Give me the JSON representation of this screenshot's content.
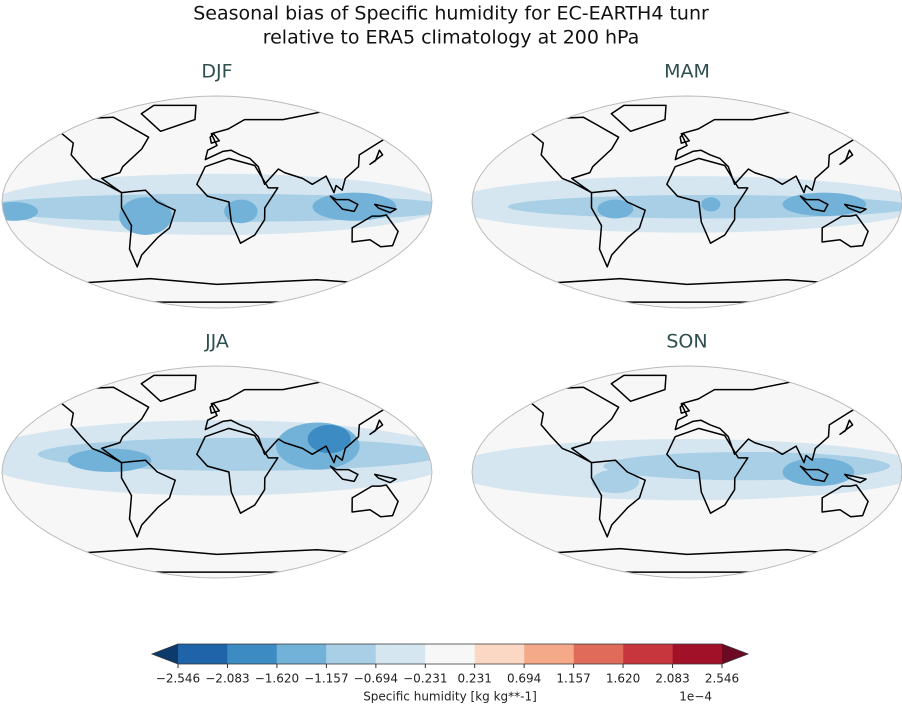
{
  "title_lines": [
    "Seasonal bias of Specific humidity for EC-EARTH4 tunr",
    "relative to ERA5 climatology at 200 hPa"
  ],
  "panels": [
    {
      "label": "DJF"
    },
    {
      "label": "MAM"
    },
    {
      "label": "JJA"
    },
    {
      "label": "SON"
    }
  ],
  "colorbar": {
    "colors": [
      "#1f63a8",
      "#3c8bc3",
      "#73b2d8",
      "#a8cfe5",
      "#d6e6f1",
      "#f7f7f7",
      "#fbd8c4",
      "#f4a989",
      "#e06b5a",
      "#c6363c",
      "#a11228"
    ],
    "extend_colors": [
      "#0d3a6c",
      "#6b0a22"
    ],
    "ticks": [
      {
        "value": -2.546,
        "label": "−2.546"
      },
      {
        "value": -2.083,
        "label": "−2.083"
      },
      {
        "value": -1.62,
        "label": "−1.620"
      },
      {
        "value": -1.157,
        "label": "−1.157"
      },
      {
        "value": -0.694,
        "label": "−0.694"
      },
      {
        "value": -0.231,
        "label": "−0.231"
      },
      0.231,
      0.694,
      1.157,
      {
        "value": 1.62,
        "label": "1.620"
      },
      2.083,
      2.546
    ],
    "label": "Specific humidity [kg kg**-1]",
    "multiplier": "1e−4"
  }
}
